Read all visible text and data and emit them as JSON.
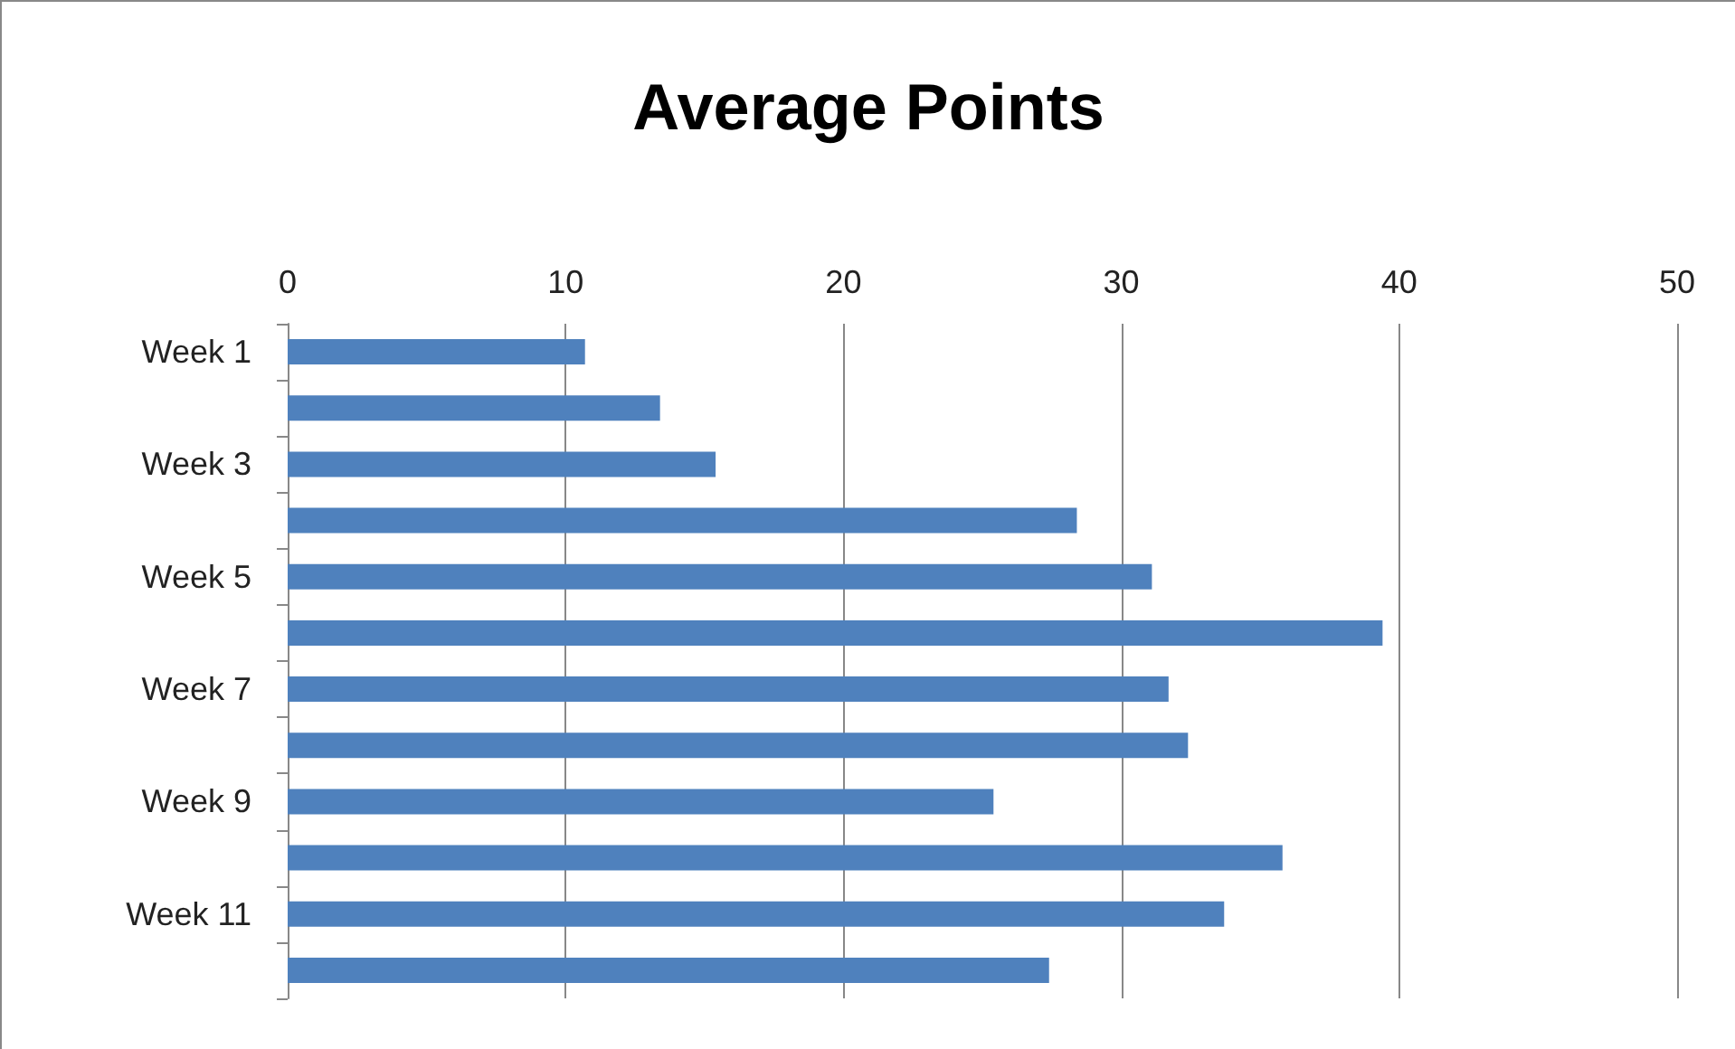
{
  "chart_data": {
    "type": "bar",
    "orientation": "horizontal",
    "title": "Average Points",
    "categories": [
      "Week 1",
      null,
      "Week 3",
      null,
      "Week 5",
      null,
      "Week 7",
      null,
      "Week 9",
      null,
      "Week 11",
      null
    ],
    "values": [
      10.7,
      13.4,
      15.4,
      28.4,
      31.1,
      39.4,
      31.7,
      32.4,
      25.4,
      35.8,
      33.7,
      27.4
    ],
    "color": "#4f81bd",
    "xlim": [
      0,
      50
    ],
    "xticks": [
      0,
      10,
      20,
      30,
      40,
      50
    ],
    "grid": "x"
  }
}
